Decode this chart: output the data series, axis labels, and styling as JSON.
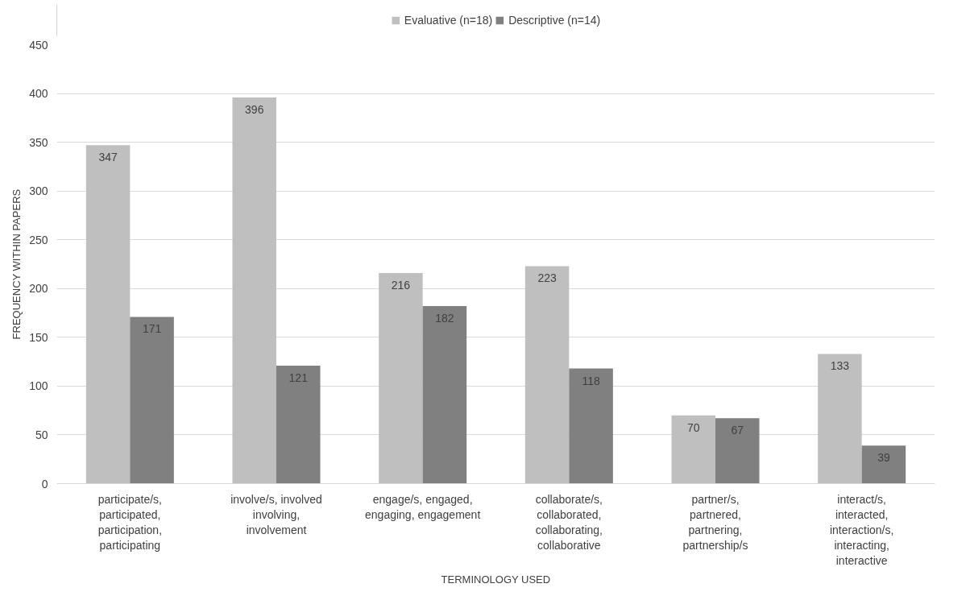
{
  "chart_data": {
    "type": "bar",
    "xlabel": "TERMINOLOGY USED",
    "ylabel": "FREQUENCY WITHIN PAPERS",
    "categories": [
      "participate/s, participated, participation, participating",
      "involve/s, involved involving, involvement",
      "engage/s, engaged, engaging, engagement",
      "collaborate/s, collaborated, collaborating, collaborative",
      "partner/s, partnered, partnering, partnership/s",
      "interact/s, interacted, interaction/s, interacting, interactive"
    ],
    "series": [
      {
        "name": "Evaluative (n=18)",
        "color": "#bfbfbf",
        "values": [
          347,
          396,
          216,
          223,
          70,
          133
        ]
      },
      {
        "name": "Descriptive (n=14)",
        "color": "#808080",
        "values": [
          171,
          121,
          182,
          118,
          67,
          39
        ]
      }
    ],
    "ylim": [
      0,
      450
    ],
    "yticks": [
      0,
      50,
      100,
      150,
      200,
      250,
      300,
      350,
      400,
      450
    ],
    "grid": "y",
    "legend": "top",
    "data_labels": true
  }
}
